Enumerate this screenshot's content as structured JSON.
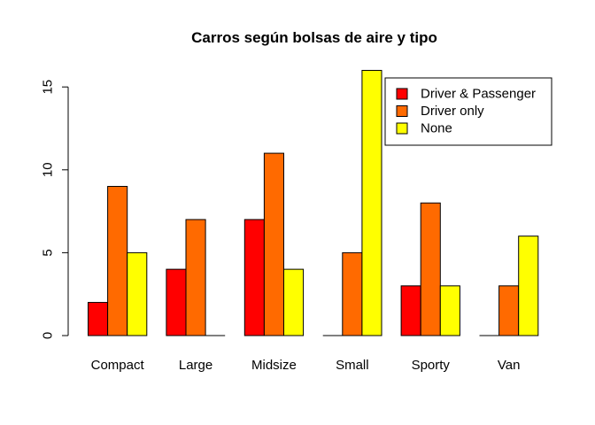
{
  "chart_data": {
    "type": "bar",
    "title": "Carros según bolsas de aire y tipo",
    "xlabel": "",
    "ylabel": "",
    "categories": [
      "Compact",
      "Large",
      "Midsize",
      "Small",
      "Sporty",
      "Van"
    ],
    "series": [
      {
        "name": "Driver & Passenger",
        "color": "#ff0000",
        "values": [
          2,
          4,
          7,
          0,
          3,
          0
        ]
      },
      {
        "name": "Driver only",
        "color": "#ff6a00",
        "values": [
          9,
          7,
          11,
          5,
          8,
          3
        ]
      },
      {
        "name": "None",
        "color": "#ffff00",
        "values": [
          5,
          0,
          4,
          16,
          3,
          6
        ]
      }
    ],
    "y_ticks": [
      0,
      5,
      10,
      15
    ],
    "ylim": [
      0,
      16
    ],
    "grid": false,
    "legend_position": "top-right",
    "bar_mode": "grouped"
  }
}
